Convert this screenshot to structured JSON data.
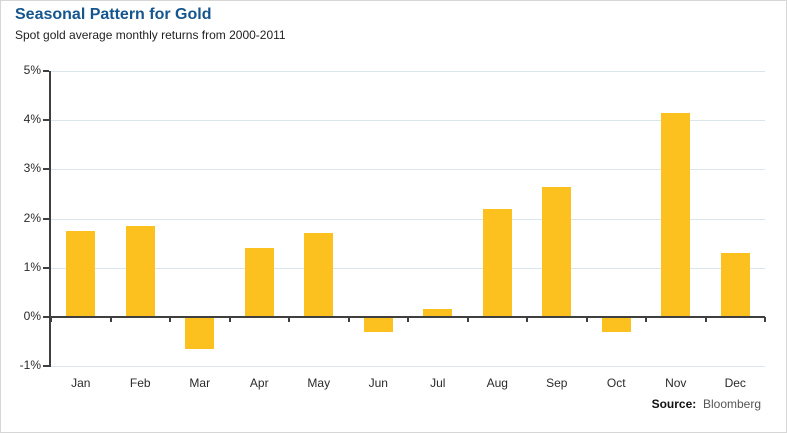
{
  "header": {
    "title": "Seasonal Pattern for Gold",
    "subtitle": "Spot gold average monthly returns from 2000-2011"
  },
  "source": {
    "label": "Source:",
    "value": "Bloomberg"
  },
  "colors": {
    "title_blue": "#15568F",
    "bar_gold": "#FCC11E",
    "gridline": "#D9E7EC",
    "axis": "#3F3F3F",
    "label_text": "#2a2a2a"
  },
  "chart_data": {
    "type": "bar",
    "title": "Seasonal Pattern for Gold",
    "subtitle": "Spot gold average monthly returns from 2000-2011",
    "categories": [
      "Jan",
      "Feb",
      "Mar",
      "Apr",
      "May",
      "Jun",
      "Jul",
      "Aug",
      "Sep",
      "Oct",
      "Nov",
      "Dec"
    ],
    "values": [
      1.75,
      1.85,
      -0.65,
      1.4,
      1.7,
      -0.3,
      0.15,
      2.2,
      2.65,
      -0.3,
      4.15,
      1.3
    ],
    "xlabel": "",
    "ylabel": "",
    "ylim": [
      -1,
      5
    ],
    "yticks": [
      5,
      4,
      3,
      2,
      1,
      0,
      -1
    ],
    "ytick_labels": [
      "5%",
      "4%",
      "3%",
      "2%",
      "1%",
      "0%",
      "-1%"
    ],
    "grid": true,
    "gridline_style": "light horizontal",
    "legend": false,
    "bar_color": "#FCC11E",
    "source": "Bloomberg"
  }
}
